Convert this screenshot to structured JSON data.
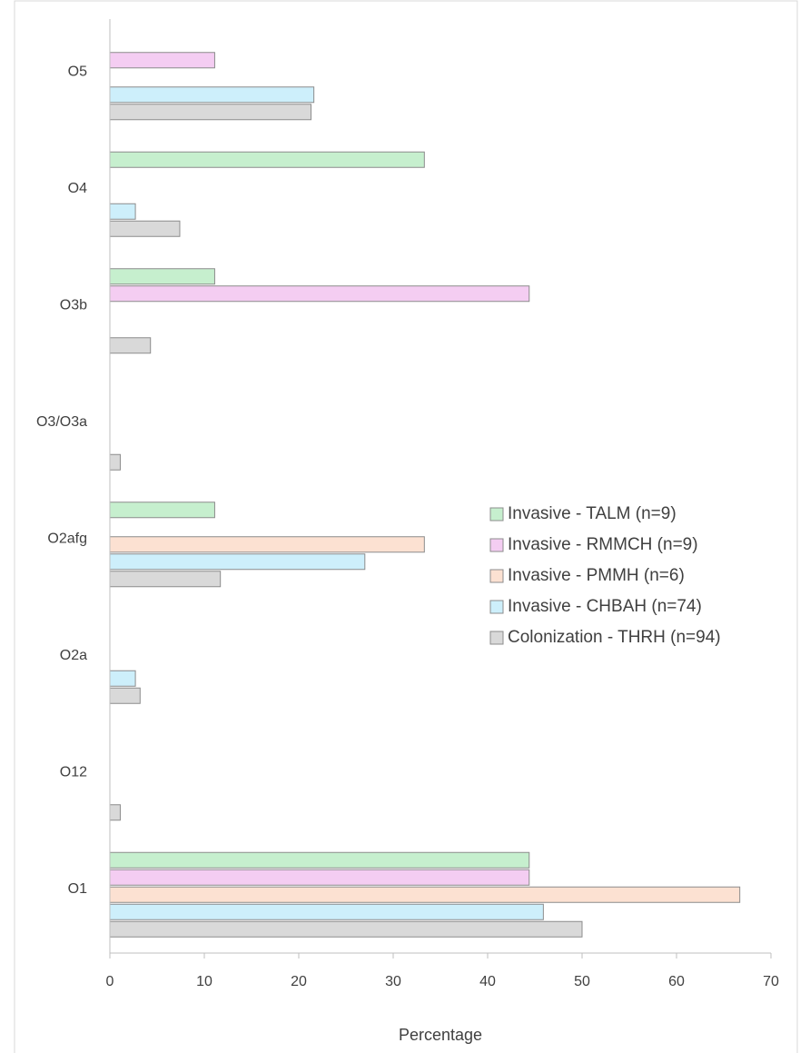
{
  "chart_data": {
    "type": "bar",
    "orientation": "horizontal",
    "x_label": "Percentage",
    "categories": [
      "O5",
      "O4",
      "O3b",
      "O3/O3a",
      "O2afg",
      "O2a",
      "O12",
      "O1"
    ],
    "series": [
      {
        "name": "Invasive - TALM (n=9)",
        "color": "#c6efce",
        "values": [
          0,
          33.3,
          11.1,
          0,
          11.1,
          0,
          0,
          44.4
        ]
      },
      {
        "name": "Invasive - RMMCH (n=9)",
        "color": "#f4cdf2",
        "values": [
          11.1,
          0,
          44.4,
          0,
          0,
          0,
          0,
          44.4
        ]
      },
      {
        "name": "Invasive - PMMH (n=6)",
        "color": "#fce1d2",
        "values": [
          0,
          0,
          0,
          0,
          33.3,
          0,
          0,
          66.7
        ]
      },
      {
        "name": "Invasive - CHBAH (n=74)",
        "color": "#cdeffb",
        "values": [
          21.6,
          2.7,
          0,
          0,
          27.0,
          2.7,
          0,
          45.9
        ]
      },
      {
        "name": "Colonization - THRH (n=94)",
        "color": "#d9d9d9",
        "values": [
          21.3,
          7.4,
          4.3,
          1.1,
          11.7,
          3.2,
          1.1,
          50.0
        ]
      }
    ],
    "xlim": [
      0,
      70
    ],
    "xticks": [
      0,
      10,
      20,
      30,
      40,
      50,
      60,
      70
    ]
  }
}
